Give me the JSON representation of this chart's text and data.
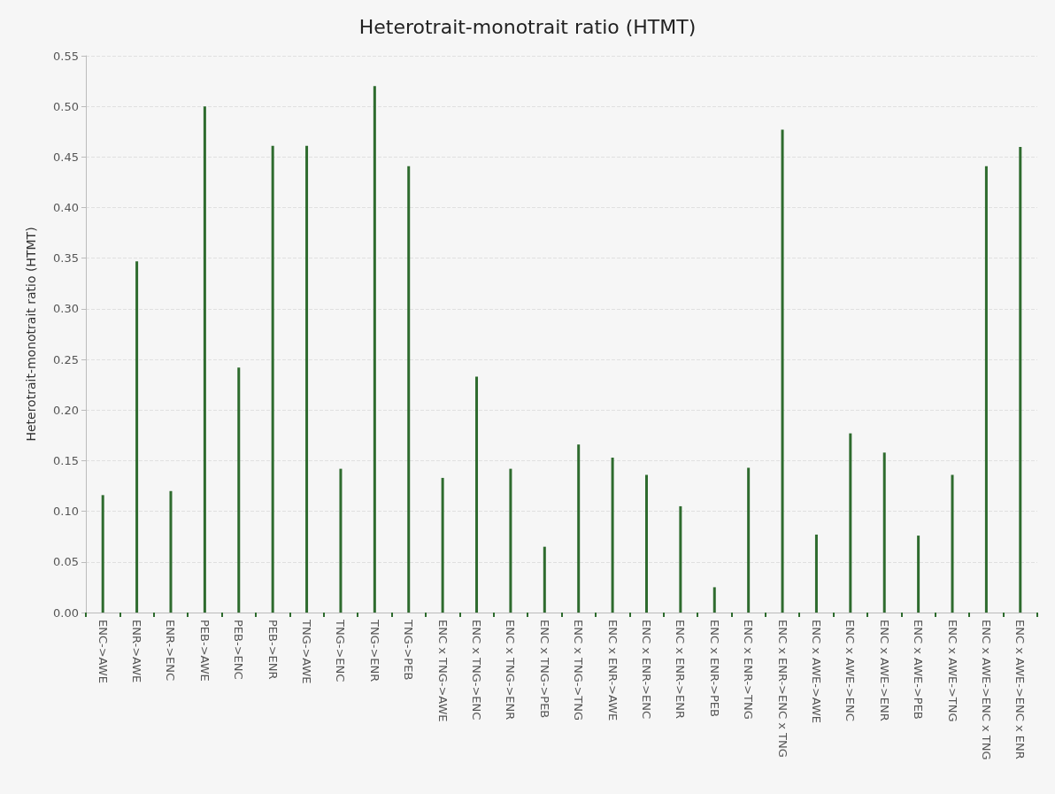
{
  "chart_data": {
    "type": "bar",
    "title": "Heterotrait-monotrait ratio (HTMT)",
    "ylabel": "Heterotrait-monotrait ratio (HTMT)",
    "categories": [
      "ENC->AWE",
      "ENR->AWE",
      "ENR->ENC",
      "PEB->AWE",
      "PEB->ENC",
      "PEB->ENR",
      "TNG->AWE",
      "TNG->ENC",
      "TNG->ENR",
      "TNG->PEB",
      "ENC x TNG->AWE",
      "ENC x TNG->ENC",
      "ENC x TNG->ENR",
      "ENC x TNG->PEB",
      "ENC x TNG->TNG",
      "ENC x ENR->AWE",
      "ENC x ENR->ENC",
      "ENC x ENR->ENR",
      "ENC x ENR->PEB",
      "ENC x ENR->TNG",
      "ENC x ENR->ENC x TNG",
      "ENC x AWE->AWE",
      "ENC x AWE->ENC",
      "ENC x AWE->ENR",
      "ENC x AWE->PEB",
      "ENC x AWE->TNG",
      "ENC x AWE->ENC x TNG",
      "ENC x AWE->ENC x ENR"
    ],
    "values": [
      0.116,
      0.347,
      0.12,
      0.5,
      0.242,
      0.461,
      0.461,
      0.142,
      0.52,
      0.441,
      0.133,
      0.233,
      0.142,
      0.065,
      0.166,
      0.153,
      0.136,
      0.105,
      0.025,
      0.143,
      0.477,
      0.077,
      0.177,
      0.158,
      0.076,
      0.136,
      0.441,
      0.46
    ],
    "color": "#2e6b2e",
    "ylim": [
      0,
      0.55
    ],
    "yticks": [
      {
        "value": 0,
        "label": "0.00"
      },
      {
        "value": 0.05,
        "label": "0.05"
      },
      {
        "value": 0.1,
        "label": "0.10"
      },
      {
        "value": 0.15,
        "label": "0.15"
      },
      {
        "value": 0.2,
        "label": "0.20"
      },
      {
        "value": 0.25,
        "label": "0.25"
      },
      {
        "value": 0.3,
        "label": "0.30"
      },
      {
        "value": 0.35,
        "label": "0.35"
      },
      {
        "value": 0.4,
        "label": "0.40"
      },
      {
        "value": 0.45,
        "label": "0.45"
      },
      {
        "value": 0.5,
        "label": "0.50"
      },
      {
        "value": 0.55,
        "label": "0.55"
      }
    ],
    "grid": "y"
  }
}
